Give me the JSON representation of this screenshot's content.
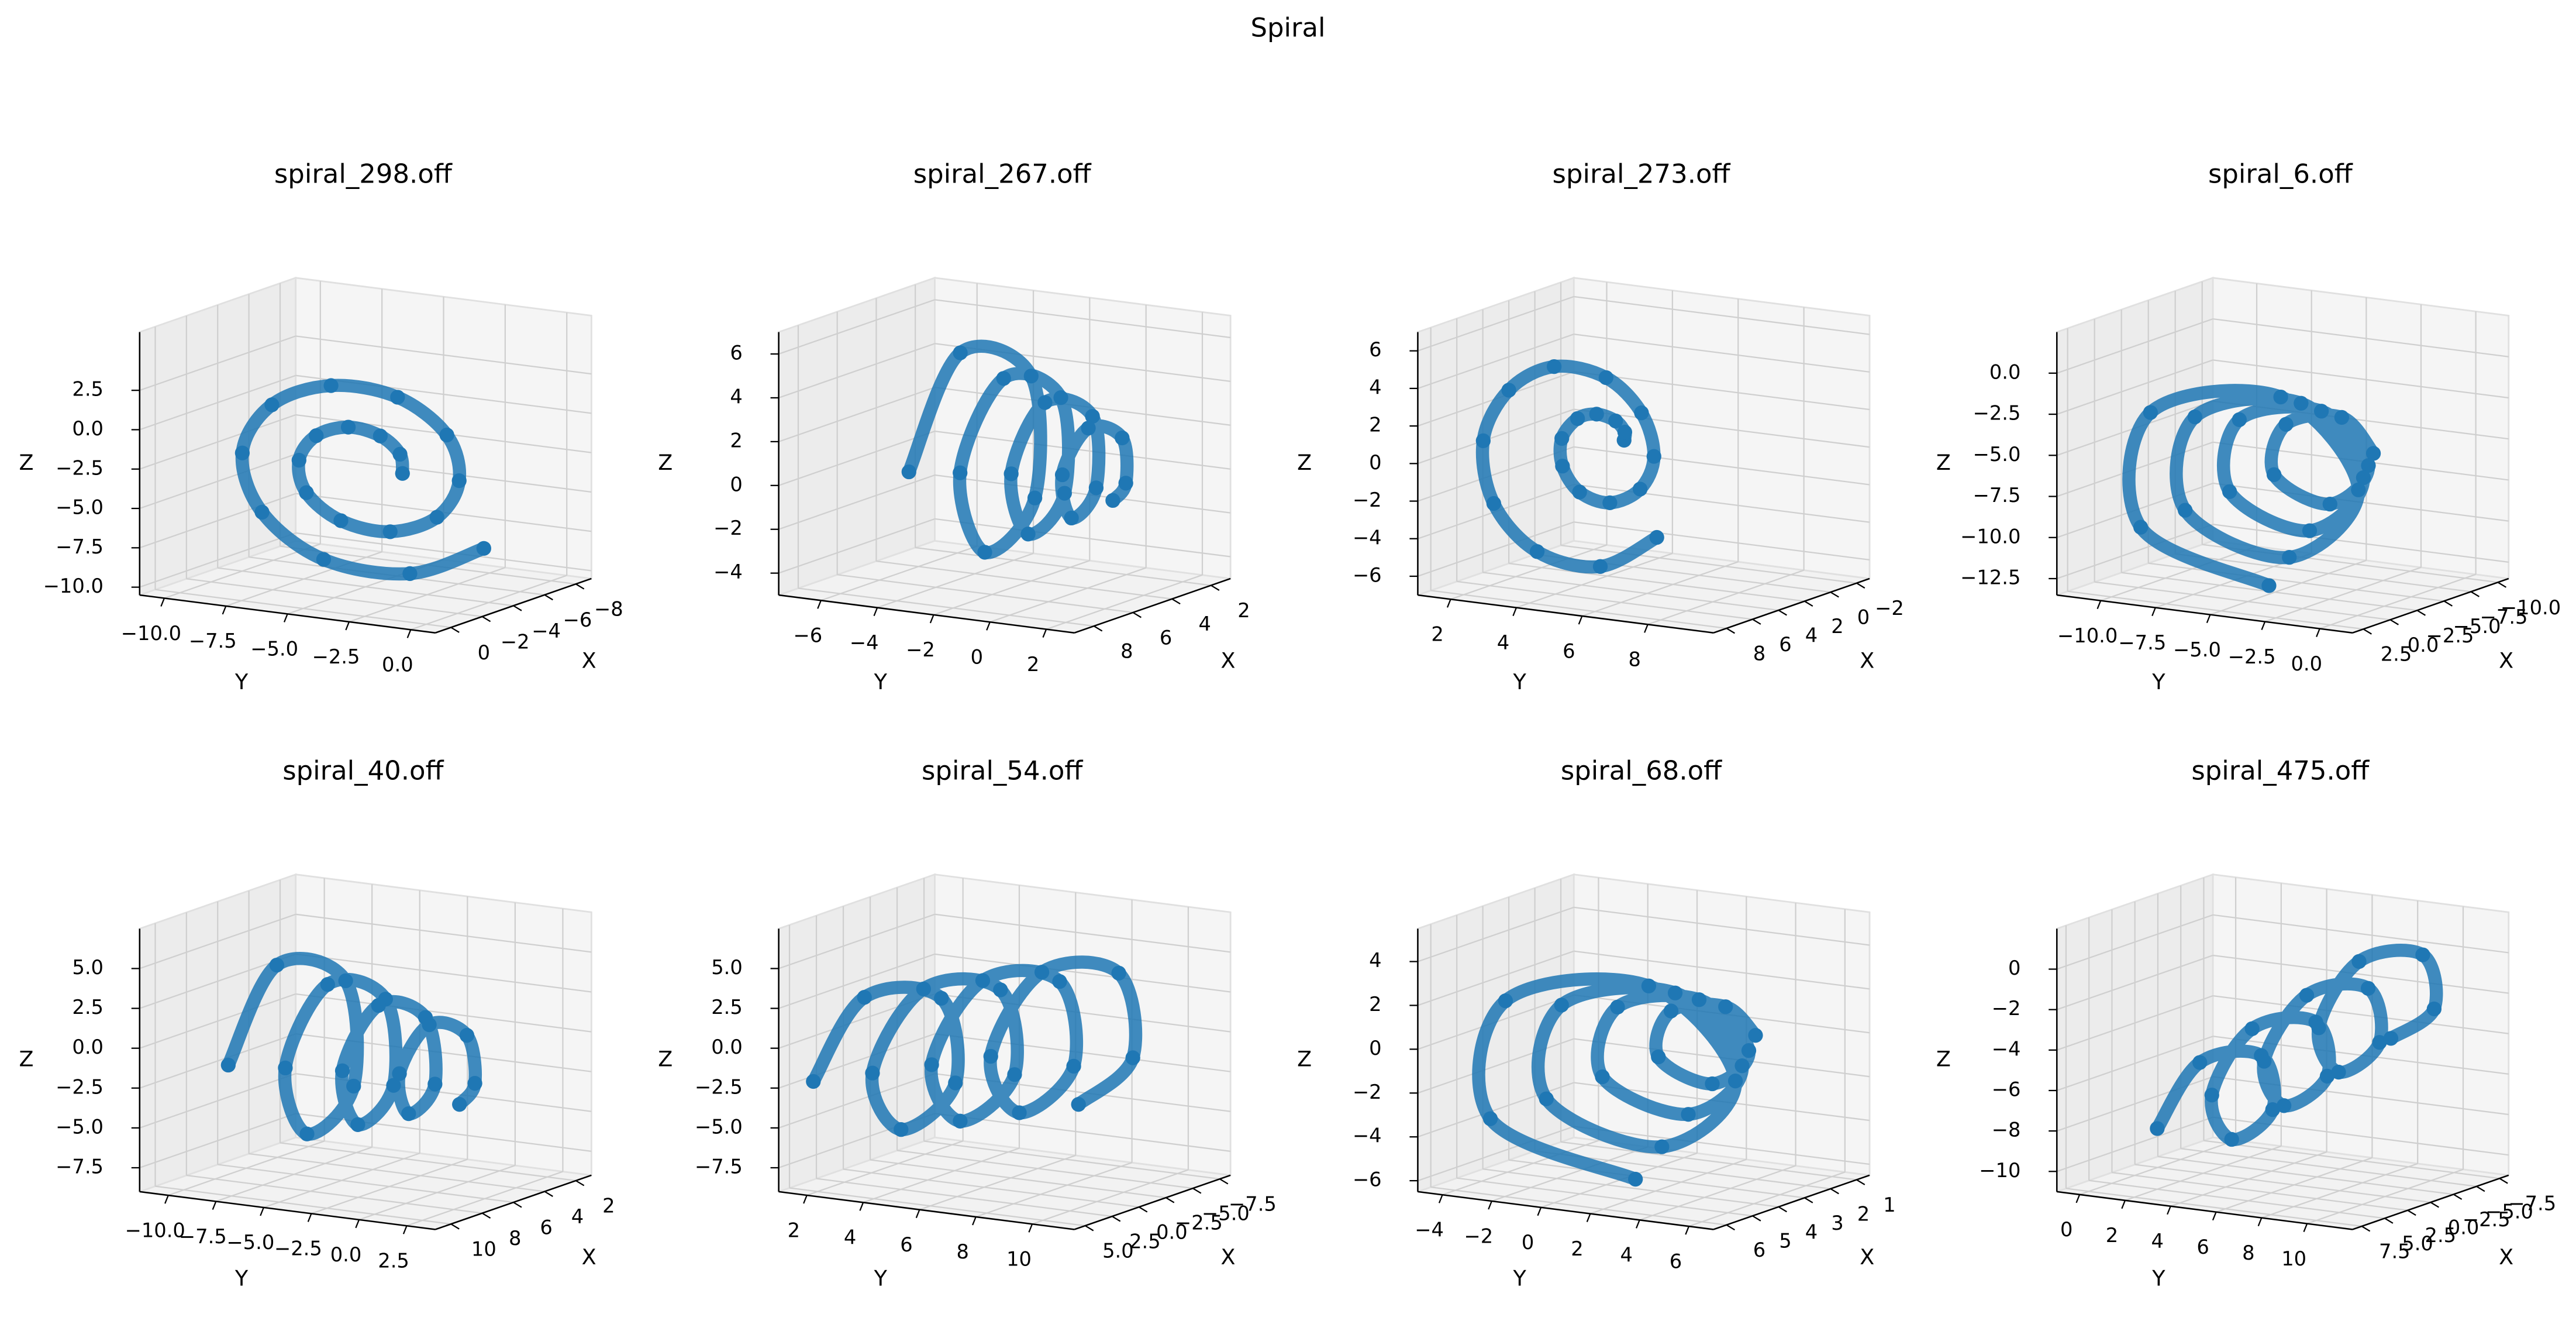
{
  "title": "Spiral",
  "chart_data": [
    {
      "type": "scatter3d",
      "title": "spiral_298.off",
      "xlabel": "X",
      "ylabel": "Y",
      "zlabel": "Z",
      "color": "#1f77b4",
      "xlim": [
        -9,
        1
      ],
      "ylim": [
        -11,
        1
      ],
      "zlim": [
        -10.5,
        6.2
      ],
      "xticks": [
        0,
        {
          "value": -2,
          "label": "−2"
        },
        {
          "value": -4,
          "label": "−4"
        },
        {
          "value": -6,
          "label": "−6"
        },
        {
          "value": -8,
          "label": "−8"
        }
      ],
      "yticks": [
        {
          "value": -10,
          "label": "−10.0"
        },
        {
          "value": -7.5,
          "label": "−7.5"
        },
        {
          "value": -5,
          "label": "−5.0"
        },
        {
          "value": -2.5,
          "label": "−2.5"
        },
        {
          "value": 0,
          "label": "0.0"
        }
      ],
      "zticks": [
        2.5,
        {
          "value": 0,
          "label": "0.0"
        },
        {
          "value": -2.5,
          "label": "−2.5"
        },
        {
          "value": -5,
          "label": "−5.0"
        },
        {
          "value": -7.5,
          "label": "−7.5"
        },
        {
          "value": -10,
          "label": "−10.0"
        }
      ],
      "x": [
        -4,
        -4,
        -4,
        -4,
        -4,
        -4,
        -4,
        -4,
        -4,
        -4,
        -4,
        -4,
        -4,
        -4,
        -4,
        -4,
        -4,
        -4,
        -4,
        -4
      ],
      "y": [
        -3.5,
        -3.6,
        -4.4,
        -5.7,
        -7.0,
        -7.7,
        -7.4,
        -6.0,
        -4.0,
        -2.1,
        -1.2,
        -1.7,
        -3.7,
        -6.4,
        -8.8,
        -10.0,
        -9.2,
        -6.7,
        -3.2,
        -0.2
      ],
      "z": [
        -3.0,
        -1.8,
        -0.8,
        -0.5,
        -1.3,
        -3.0,
        -5.0,
        -6.5,
        -6.8,
        -5.5,
        -3.0,
        -0.2,
        1.8,
        2.0,
        0.3,
        -3.0,
        -6.6,
        -9.1,
        -9.3,
        -7.1
      ]
    },
    {
      "type": "scatter3d",
      "title": "spiral_267.off",
      "xlabel": "X",
      "ylabel": "Y",
      "zlabel": "Z",
      "color": "#1f77b4",
      "xlim": [
        1,
        9
      ],
      "ylim": [
        -7.5,
        3
      ],
      "zlim": [
        -5,
        7
      ],
      "xticks": [
        8,
        6,
        4,
        2
      ],
      "yticks": [
        {
          "value": -6,
          "label": "−6"
        },
        {
          "value": -4,
          "label": "−4"
        },
        {
          "value": -2,
          "label": "−2"
        },
        0,
        2
      ],
      "zticks": [
        6,
        4,
        2,
        0,
        {
          "value": -2,
          "label": "−2"
        },
        {
          "value": -4,
          "label": "−4"
        }
      ],
      "x": [
        8.1,
        5.9,
        2.7,
        2.8,
        5.8,
        7.5,
        5.7,
        3.2,
        3.3,
        5.6,
        6.9,
        5.6,
        3.6,
        3.7,
        5.4,
        6.3,
        5.4,
        4.1,
        4.2,
        5.3
      ],
      "y": [
        -3.5,
        -3.2,
        -2.9,
        -2.7,
        -2.4,
        -2.1,
        -1.8,
        -1.5,
        -1.3,
        -1.0,
        -0.7,
        -0.4,
        -0.1,
        0.1,
        0.4,
        0.7,
        1.0,
        1.3,
        1.5,
        1.8
      ],
      "z": [
        1.0,
        5.8,
        3.8,
        -1.7,
        -3.2,
        1.0,
        4.8,
        3.2,
        -1.1,
        -2.2,
        1.0,
        3.9,
        2.7,
        -0.5,
        -1.3,
        1.0,
        2.9,
        2.1,
        0.1,
        -0.3
      ]
    },
    {
      "type": "scatter3d",
      "title": "spiral_273.off",
      "xlabel": "X",
      "ylabel": "Y",
      "zlabel": "Z",
      "color": "#1f77b4",
      "xlim": [
        -3,
        9
      ],
      "ylim": [
        1,
        10
      ],
      "zlim": [
        -7,
        7
      ],
      "xticks": [
        8,
        6,
        4,
        2,
        0,
        {
          "value": -2,
          "label": "−2"
        }
      ],
      "yticks": [
        2,
        4,
        6,
        8
      ],
      "zticks": [
        6,
        4,
        2,
        0,
        {
          "value": -2,
          "label": "−2"
        },
        {
          "value": -4,
          "label": "−4"
        },
        {
          "value": -6,
          "label": "−6"
        }
      ],
      "x": [
        4.0,
        4.2,
        4.4,
        4.6,
        4.8,
        5.0,
        5.2,
        5.4,
        5.6,
        5.8,
        6.0,
        6.2,
        6.4,
        6.6,
        6.8,
        7.0,
        7.2,
        7.4,
        7.6,
        7.8
      ],
      "y": [
        5.3,
        5.4,
        5.2,
        4.7,
        4.2,
        3.8,
        3.9,
        4.5,
        5.5,
        6.5,
        7.0,
        6.7,
        5.7,
        4.2,
        2.9,
        2.2,
        2.6,
        4.0,
        6.0,
        7.8
      ],
      "z": [
        1.0,
        1.5,
        2.1,
        2.4,
        2.1,
        1.0,
        -0.4,
        -1.6,
        -1.9,
        -0.9,
        1.0,
        3.3,
        5.0,
        5.3,
        3.8,
        1.0,
        -2.2,
        -4.4,
        -4.7,
        -2.7
      ]
    },
    {
      "type": "scatter3d",
      "title": "spiral_6.off",
      "xlabel": "X",
      "ylabel": "Y",
      "zlabel": "Z",
      "color": "#1f77b4",
      "xlim": [
        -11,
        3.5
      ],
      "ylim": [
        -12,
        1.5
      ],
      "zlim": [
        -13.5,
        2.5
      ],
      "xticks": [
        2.5,
        {
          "value": 0,
          "label": "0.0"
        },
        {
          "value": -2.5,
          "label": "−2.5"
        },
        {
          "value": -5,
          "label": "−5.0"
        },
        {
          "value": -7.5,
          "label": "−7.5"
        },
        {
          "value": -10,
          "label": "−10.0"
        }
      ],
      "yticks": [
        {
          "value": -10,
          "label": "−10.0"
        },
        {
          "value": -7.5,
          "label": "−7.5"
        },
        {
          "value": -5,
          "label": "−5.0"
        },
        {
          "value": -2.5,
          "label": "−2.5"
        },
        {
          "value": 0,
          "label": "0.0"
        }
      ],
      "zticks": [
        {
          "value": 0,
          "label": "0.0"
        },
        {
          "value": -2.5,
          "label": "−2.5"
        },
        {
          "value": -5,
          "label": "−5.0"
        },
        {
          "value": -7.5,
          "label": "−7.5"
        },
        {
          "value": -10,
          "label": "−10.0"
        },
        {
          "value": -12.5,
          "label": "−12.5"
        }
      ],
      "x": [
        -8.0,
        -7.5,
        -7.0,
        -6.5,
        -6.0,
        -5.5,
        -5.0,
        -4.5,
        -4.0,
        -3.5,
        -3.0,
        -2.5,
        -2.0,
        -1.5,
        -1.0,
        -0.5,
        0.0,
        0.5,
        1.0,
        1.5
      ],
      "y": [
        -3.2,
        -4.4,
        -6.7,
        -7.0,
        -4.2,
        -2.2,
        -4.1,
        -7.6,
        -7.8,
        -3.9,
        -1.2,
        -3.8,
        -8.4,
        -8.6,
        -3.6,
        -0.2,
        -3.5,
        -9.2,
        -9.4,
        -3.3
      ],
      "z": [
        -6.0,
        -3.9,
        -4.6,
        -7.6,
        -8.8,
        -6.0,
        -2.9,
        -3.9,
        -8.2,
        -9.8,
        -6.0,
        -1.8,
        -3.3,
        -8.9,
        -10.8,
        -6.0,
        -0.8,
        -2.6,
        -9.5,
        -11.9
      ]
    },
    {
      "type": "scatter3d",
      "title": "spiral_40.off",
      "xlabel": "X",
      "ylabel": "Y",
      "zlabel": "Z",
      "color": "#1f77b4",
      "xlim": [
        1,
        11
      ],
      "ylim": [
        -11.5,
        4
      ],
      "zlim": [
        -9,
        7.5
      ],
      "xticks": [
        10,
        8,
        6,
        4,
        2
      ],
      "yticks": [
        {
          "value": -10,
          "label": "−10.0"
        },
        {
          "value": -7.5,
          "label": "−7.5"
        },
        {
          "value": -5,
          "label": "−5.0"
        },
        {
          "value": -2.5,
          "label": "−2.5"
        },
        {
          "value": 0,
          "label": "0.0"
        },
        2.5
      ],
      "zticks": [
        {
          "value": 5,
          "label": "5.0"
        },
        2.5,
        {
          "value": 0,
          "label": "0.0"
        },
        {
          "value": -2.5,
          "label": "−2.5"
        },
        {
          "value": -5,
          "label": "−5.0"
        },
        {
          "value": -7.5,
          "label": "−7.5"
        }
      ],
      "x": [
        9.6,
        7.1,
        3.3,
        3.4,
        7.0,
        9.0,
        6.9,
        3.8,
        3.9,
        6.8,
        8.4,
        6.7,
        4.3,
        4.3,
        6.6,
        7.8,
        6.5,
        4.7,
        4.8,
        6.4
      ],
      "y": [
        -8.0,
        -7.5,
        -7.0,
        -6.5,
        -6.0,
        -5.5,
        -5.0,
        -4.5,
        -4.0,
        -3.5,
        -3.0,
        -2.5,
        -2.0,
        -1.5,
        -1.0,
        -0.5,
        0.0,
        0.5,
        1.0,
        1.5
      ],
      "z": [
        -1.0,
        4.5,
        2.3,
        -4.2,
        -5.9,
        -1.0,
        3.6,
        1.7,
        -3.6,
        -5.0,
        -1.0,
        2.6,
        1.1,
        -3.0,
        -4.0,
        -1.0,
        1.7,
        0.5,
        -2.4,
        -3.1
      ]
    },
    {
      "type": "scatter3d",
      "title": "spiral_54.off",
      "xlabel": "X",
      "ylabel": "Y",
      "zlabel": "Z",
      "color": "#1f77b4",
      "xlim": [
        -8.5,
        6
      ],
      "ylim": [
        1,
        11.5
      ],
      "zlim": [
        -9,
        7.5
      ],
      "xticks": [
        {
          "value": 5,
          "label": "5.0"
        },
        2.5,
        {
          "value": 0,
          "label": "0.0"
        },
        {
          "value": -2.5,
          "label": "−2.5"
        },
        {
          "value": -5,
          "label": "−5.0"
        },
        {
          "value": -7.5,
          "label": "−7.5"
        }
      ],
      "yticks": [
        2,
        4,
        6,
        8,
        10
      ],
      "zticks": [
        {
          "value": 5,
          "label": "5.0"
        },
        2.5,
        {
          "value": 0,
          "label": "0.0"
        },
        {
          "value": -2.5,
          "label": "−2.5"
        },
        {
          "value": -5,
          "label": "−5.0"
        },
        {
          "value": -7.5,
          "label": "−7.5"
        }
      ],
      "x": [
        5.4,
        1.7,
        -4.4,
        -4.4,
        1.7,
        5.4,
        1.7,
        -4.4,
        -4.4,
        1.7,
        5.4,
        1.7,
        -4.4,
        -4.4,
        1.7,
        5.4,
        1.7,
        -4.4,
        -4.4,
        1.7
      ],
      "y": [
        2.0,
        2.4,
        2.8,
        3.3,
        3.7,
        4.1,
        4.5,
        4.9,
        5.4,
        5.8,
        6.2,
        6.6,
        7.0,
        7.5,
        7.9,
        8.3,
        8.7,
        9.1,
        9.6,
        10.0
      ],
      "z": [
        -2.0,
        2.5,
        1.1,
        -4.1,
        -5.5,
        -1.0,
        3.5,
        2.1,
        -3.1,
        -4.5,
        0.0,
        4.5,
        3.1,
        -2.1,
        -3.5,
        1.0,
        5.5,
        4.1,
        -1.1,
        -2.5
      ]
    },
    {
      "type": "scatter3d",
      "title": "spiral_68.off",
      "xlabel": "X",
      "ylabel": "Y",
      "zlabel": "Z",
      "color": "#1f77b4",
      "xlim": [
        0.5,
        6.5
      ],
      "ylim": [
        -5,
        7
      ],
      "zlim": [
        -6.5,
        5.5
      ],
      "xticks": [
        6,
        5,
        4,
        3,
        2,
        1
      ],
      "yticks": [
        {
          "value": -4,
          "label": "−4"
        },
        {
          "value": -2,
          "label": "−2"
        },
        0,
        2,
        4,
        6
      ],
      "zticks": [
        4,
        2,
        0,
        {
          "value": -2,
          "label": "−2"
        },
        {
          "value": -4,
          "label": "−4"
        },
        {
          "value": -6,
          "label": "−6"
        }
      ],
      "x": [
        1.0,
        1.3,
        1.5,
        1.8,
        2.0,
        2.3,
        2.6,
        2.8,
        3.1,
        3.3,
        3.6,
        3.9,
        4.1,
        4.4,
        4.6,
        4.9,
        5.2,
        5.4,
        5.7,
        5.9
      ],
      "y": [
        2.9,
        2.0,
        0.0,
        -0.2,
        2.2,
        4.0,
        2.3,
        -0.8,
        -1.1,
        2.6,
        5.1,
        2.7,
        -1.7,
        -2.0,
        2.9,
        6.2,
        3.0,
        -2.6,
        -2.9,
        3.2
      ],
      "z": [
        -0.5,
        0.8,
        0.4,
        -1.6,
        -2.4,
        -0.5,
        1.7,
        1.0,
        -2.1,
        -3.2,
        -0.5,
        2.6,
        1.5,
        -2.7,
        -4.1,
        -0.5,
        3.5,
        2.1,
        -3.2,
        -5.0
      ]
    },
    {
      "type": "scatter3d",
      "title": "spiral_475.off",
      "xlabel": "X",
      "ylabel": "Y",
      "zlabel": "Z",
      "color": "#1f77b4",
      "xlim": [
        -8.5,
        8.5
      ],
      "ylim": [
        -1,
        12
      ],
      "zlim": [
        -11,
        2
      ],
      "xticks": [
        7.5,
        {
          "value": 5,
          "label": "5.0"
        },
        2.5,
        {
          "value": 0,
          "label": "0.0"
        },
        {
          "value": -2.5,
          "label": "−2.5"
        },
        {
          "value": -5,
          "label": "−5.0"
        },
        {
          "value": -7.5,
          "label": "−7.5"
        }
      ],
      "yticks": [
        0,
        2,
        4,
        6,
        8,
        10
      ],
      "zticks": [
        0,
        {
          "value": -2,
          "label": "−2"
        },
        {
          "value": -4,
          "label": "−4"
        },
        {
          "value": -6,
          "label": "−6"
        },
        {
          "value": -8,
          "label": "−8"
        },
        {
          "value": -10,
          "label": "−10"
        }
      ],
      "x": [
        5.0,
        1.6,
        -4.1,
        -4.1,
        1.6,
        5.0,
        1.6,
        -4.1,
        -4.1,
        1.6,
        5.0,
        1.6,
        -4.1,
        -4.1,
        1.6,
        5.0,
        1.6,
        -4.1,
        -4.1,
        1.6
      ],
      "y": [
        2.0,
        2.5,
        2.9,
        3.4,
        3.9,
        4.4,
        4.8,
        5.3,
        5.8,
        6.2,
        6.7,
        7.2,
        7.6,
        8.1,
        8.6,
        9.1,
        9.5,
        10.0,
        10.5,
        10.9
      ],
      "z": [
        -8.0,
        -5.2,
        -5.7,
        -8.3,
        -8.8,
        -6.0,
        -3.2,
        -3.7,
        -6.3,
        -6.8,
        -4.0,
        -1.2,
        -1.7,
        -4.3,
        -4.8,
        -2.0,
        0.8,
        0.3,
        -2.3,
        -2.8
      ]
    }
  ]
}
